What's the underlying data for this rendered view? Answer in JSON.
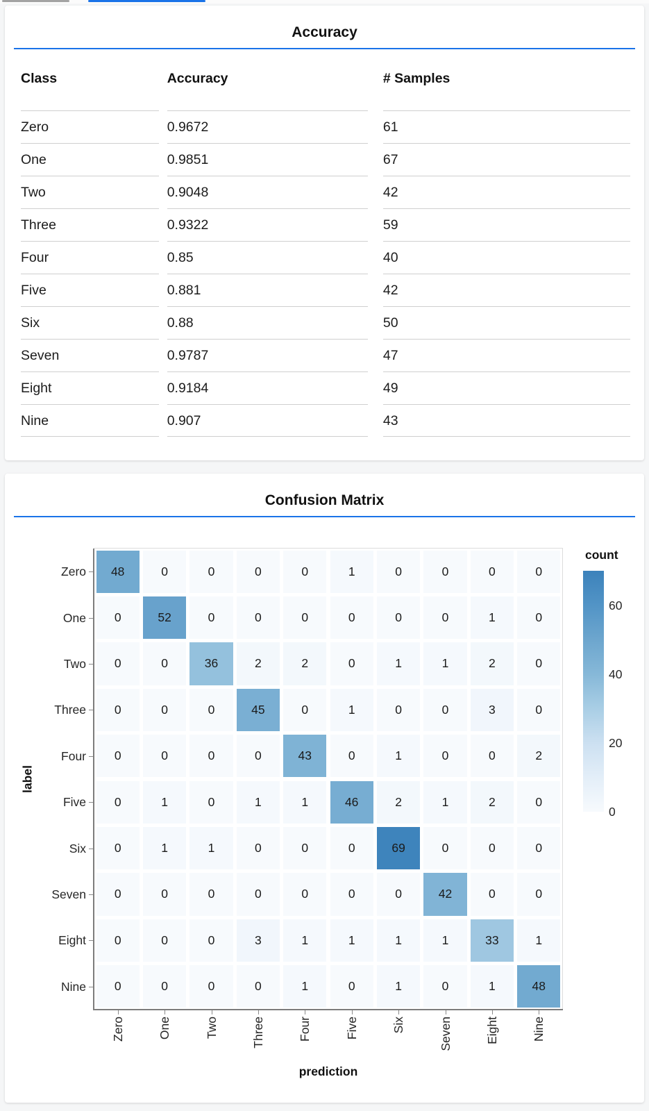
{
  "colors": {
    "accent_blue": "#1a73e8",
    "inactive_tab_gray": "#a3a3a3",
    "table_separator": "#cfcfcf",
    "axis_line": "#7c7c7c",
    "heat_ramp": [
      [
        0,
        "#f7fafd"
      ],
      [
        10,
        "#e3eef8"
      ],
      [
        20,
        "#cce0f1"
      ],
      [
        30,
        "#a9cee5"
      ],
      [
        40,
        "#86b8d8"
      ],
      [
        50,
        "#6da6ce"
      ],
      [
        60,
        "#5294c6"
      ],
      [
        70,
        "#3c82bb"
      ]
    ]
  },
  "chart_data": [
    {
      "type": "table",
      "title": "Accuracy",
      "columns": [
        "Class",
        "Accuracy",
        "# Samples"
      ],
      "rows": [
        [
          "Zero",
          "0.9672",
          "61"
        ],
        [
          "One",
          "0.9851",
          "67"
        ],
        [
          "Two",
          "0.9048",
          "42"
        ],
        [
          "Three",
          "0.9322",
          "59"
        ],
        [
          "Four",
          "0.85",
          "40"
        ],
        [
          "Five",
          "0.881",
          "42"
        ],
        [
          "Six",
          "0.88",
          "50"
        ],
        [
          "Seven",
          "0.9787",
          "47"
        ],
        [
          "Eight",
          "0.9184",
          "49"
        ],
        [
          "Nine",
          "0.907",
          "43"
        ]
      ]
    },
    {
      "type": "heatmap",
      "title": "Confusion Matrix",
      "xlabel": "prediction",
      "ylabel": "label",
      "legend_title": "count",
      "legend_position": "right",
      "x_categories": [
        "Zero",
        "One",
        "Two",
        "Three",
        "Four",
        "Five",
        "Six",
        "Seven",
        "Eight",
        "Nine"
      ],
      "y_categories": [
        "Zero",
        "One",
        "Two",
        "Three",
        "Four",
        "Five",
        "Six",
        "Seven",
        "Eight",
        "Nine"
      ],
      "matrix": [
        [
          48,
          0,
          0,
          0,
          0,
          1,
          0,
          0,
          0,
          0
        ],
        [
          0,
          52,
          0,
          0,
          0,
          0,
          0,
          0,
          1,
          0
        ],
        [
          0,
          0,
          36,
          2,
          2,
          0,
          1,
          1,
          2,
          0
        ],
        [
          0,
          0,
          0,
          45,
          0,
          1,
          0,
          0,
          3,
          0
        ],
        [
          0,
          0,
          0,
          0,
          43,
          0,
          1,
          0,
          0,
          2
        ],
        [
          0,
          1,
          0,
          1,
          1,
          46,
          2,
          1,
          2,
          0
        ],
        [
          0,
          1,
          1,
          0,
          0,
          0,
          69,
          0,
          0,
          0
        ],
        [
          0,
          0,
          0,
          0,
          0,
          0,
          0,
          42,
          0,
          0
        ],
        [
          0,
          0,
          0,
          3,
          1,
          1,
          1,
          1,
          33,
          1
        ],
        [
          0,
          0,
          0,
          0,
          1,
          0,
          1,
          0,
          1,
          48
        ]
      ],
      "color_scheme": "blues",
      "color_domain": [
        0,
        70
      ],
      "legend_ticks": [
        60,
        40,
        20,
        0
      ],
      "grid": false
    }
  ]
}
